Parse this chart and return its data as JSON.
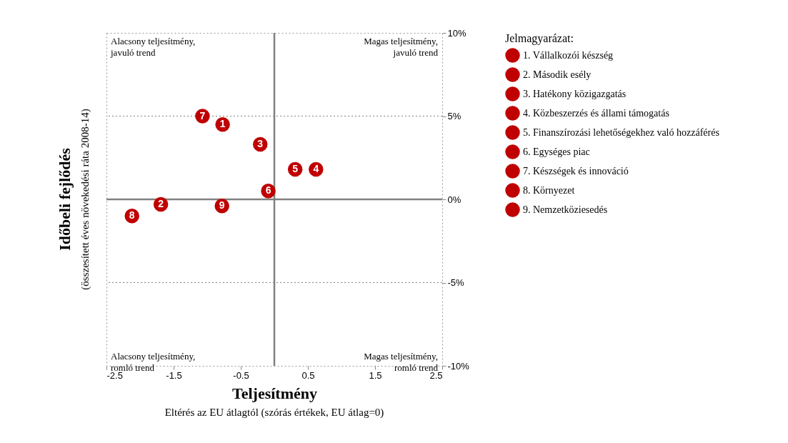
{
  "chart_data": {
    "type": "scatter",
    "xlabel": "Teljesítmény",
    "ylabel": "Időbeli fejlődés",
    "legend_title": "Jelmagyarázat:",
    "legend": "right",
    "marker": "circle",
    "grid": false,
    "xlim": [
      -2.5,
      2.5
    ],
    "xticks": [
      -2.5,
      -1.5,
      -0.5,
      0.5,
      1.5,
      2.5
    ],
    "ylim": [
      -10,
      10
    ],
    "yticks": [
      {
        "value": -10,
        "label": "-10%"
      },
      {
        "value": -5,
        "label": "-5%"
      },
      {
        "value": 0,
        "label": "0%"
      },
      {
        "value": 5,
        "label": "5%"
      },
      {
        "value": 10,
        "label": "10%"
      }
    ],
    "series": [
      {
        "name": "1. Vállalkozói készség",
        "color": "#c00000",
        "x": [
          -0.77
        ],
        "values": [
          4.5
        ]
      },
      {
        "name": "2. Második esély",
        "color": "#c00000",
        "x": [
          -1.69
        ],
        "values": [
          -0.3
        ]
      },
      {
        "name": "3. Hatékony közigazgatás",
        "color": "#c00000",
        "x": [
          -0.21
        ],
        "values": [
          3.3
        ]
      },
      {
        "name": "4. Közbeszerzés és állami támogatás",
        "color": "#c00000",
        "x": [
          0.62
        ],
        "values": [
          1.8
        ]
      },
      {
        "name": "5. Finanszírozási lehetőségekhez való hozzáférés",
        "color": "#c00000",
        "x": [
          0.31
        ],
        "values": [
          1.8
        ]
      },
      {
        "name": "6. Egységes piac",
        "color": "#c00000",
        "x": [
          -0.09
        ],
        "values": [
          0.5
        ]
      },
      {
        "name": "7. Készségek és innováció",
        "color": "#c00000",
        "x": [
          -1.07
        ],
        "values": [
          5.0
        ]
      },
      {
        "name": "8. Környezet",
        "color": "#c00000",
        "x": [
          -2.12
        ],
        "values": [
          -1.0
        ]
      },
      {
        "name": "9. Nemzetköziesedés",
        "color": "#c00000",
        "x": [
          -0.78
        ],
        "values": [
          -0.4
        ]
      }
    ],
    "ref_lines": [
      {
        "axis": "x",
        "value": 0,
        "color": "#808080",
        "line_style": "solid"
      },
      {
        "axis": "y",
        "value": 0,
        "color": "#808080",
        "line_style": "solid"
      },
      {
        "axis": "y",
        "value": 5,
        "color": "#808080",
        "line_style": "dotted"
      },
      {
        "axis": "y",
        "value": -5,
        "color": "#808080",
        "line_style": "dotted"
      }
    ],
    "annotations": [
      "Alacsony teljesítmény,\njavuló trend",
      "Magas teljesítmény,\njavuló trend",
      "Alacsony teljesítmény,\nromló trend",
      "Magas teljesítmény,\nromló trend",
      "Eltérés az EU átlagtól (szórás értékek, EU átlag=0)",
      "(összesített éves növekedési ráta 2008-14)",
      {
        "text": "1",
        "x": -0.77,
        "y": 4.5
      },
      {
        "text": "2",
        "x": -1.69,
        "y": -0.3
      },
      {
        "text": "3",
        "x": -0.21,
        "y": 3.3
      },
      {
        "text": "4",
        "x": 0.62,
        "y": 1.8
      },
      {
        "text": "5",
        "x": 0.31,
        "y": 1.8
      },
      {
        "text": "6",
        "x": -0.09,
        "y": 0.5
      },
      {
        "text": "7",
        "x": -1.07,
        "y": 5.0
      },
      {
        "text": "8",
        "x": -2.12,
        "y": -1.0
      },
      {
        "text": "9",
        "x": -0.78,
        "y": -0.4
      }
    ]
  }
}
